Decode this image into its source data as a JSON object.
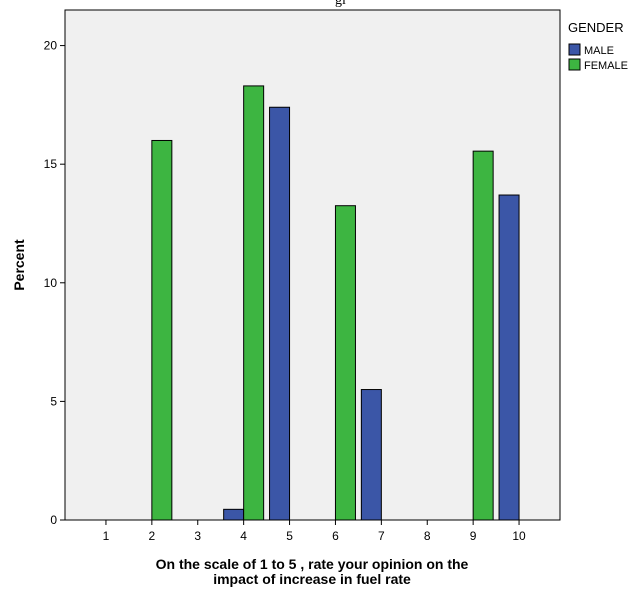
{
  "chart_data": {
    "type": "bar",
    "title_fragment": "gi",
    "xlabel": "On the scale of 1 to 5 , rate your opinion on the",
    "xlabel_line2": "impact of increase in fuel rate",
    "ylabel": "Percent",
    "categories": [
      "1",
      "2",
      "3",
      "4",
      "5",
      "6",
      "7",
      "8",
      "9",
      "10"
    ],
    "ylim": [
      0,
      21.5
    ],
    "yticks": [
      0,
      5,
      10,
      15,
      20
    ],
    "grid": false,
    "legend_position": "right",
    "legend_title": "GENDER",
    "series": [
      {
        "name": "MALE",
        "color": "#3b56a7",
        "values": [
          0,
          0,
          0,
          0.45,
          17.4,
          0,
          5.5,
          0,
          0,
          13.7
        ]
      },
      {
        "name": "FEMALE",
        "color": "#3db541",
        "values": [
          0,
          16.0,
          0,
          18.3,
          0,
          13.25,
          0,
          0,
          15.55,
          0
        ]
      }
    ]
  }
}
